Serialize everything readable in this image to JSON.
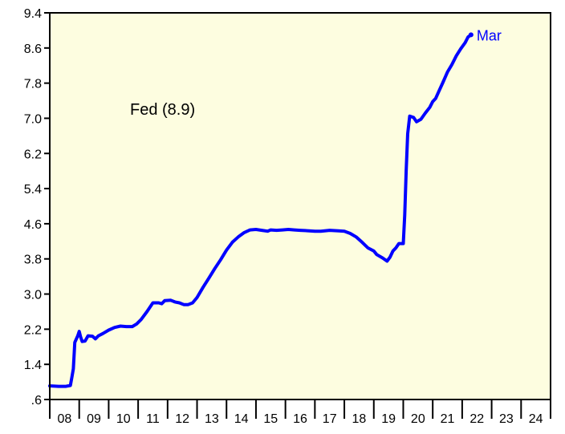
{
  "chart_data": {
    "type": "line",
    "title": "",
    "xlabel": "",
    "ylabel": "",
    "annotation": "Fed (8.9)",
    "end_label": "Mar",
    "colors": {
      "line": "#0000ff",
      "plot_bg": "#fdfde0",
      "border": "#000000",
      "label": "#0000ff"
    },
    "x_ticks": [
      "08",
      "09",
      "10",
      "11",
      "12",
      "13",
      "14",
      "15",
      "16",
      "17",
      "18",
      "19",
      "20",
      "21",
      "22",
      "23",
      "24"
    ],
    "y_ticks": [
      "9.4",
      "8.6",
      "7.8",
      "7.0",
      "6.2",
      "5.4",
      "4.6",
      "3.8",
      "3.0",
      "2.2",
      "1.4",
      ".6"
    ],
    "xlim": [
      2008.0,
      2025.0
    ],
    "ylim": [
      0.6,
      9.4
    ],
    "grid": false,
    "series": [
      {
        "points": [
          [
            2008.0,
            0.91
          ],
          [
            2008.3,
            0.9
          ],
          [
            2008.55,
            0.9
          ],
          [
            2008.7,
            0.92
          ],
          [
            2008.75,
            1.1
          ],
          [
            2008.8,
            1.3
          ],
          [
            2008.85,
            1.9
          ],
          [
            2008.95,
            2.05
          ],
          [
            2009.0,
            2.15
          ],
          [
            2009.05,
            2.02
          ],
          [
            2009.1,
            1.92
          ],
          [
            2009.2,
            1.93
          ],
          [
            2009.3,
            2.05
          ],
          [
            2009.45,
            2.04
          ],
          [
            2009.55,
            1.98
          ],
          [
            2009.65,
            2.05
          ],
          [
            2009.8,
            2.1
          ],
          [
            2010.0,
            2.18
          ],
          [
            2010.2,
            2.24
          ],
          [
            2010.4,
            2.27
          ],
          [
            2010.6,
            2.26
          ],
          [
            2010.8,
            2.26
          ],
          [
            2010.95,
            2.32
          ],
          [
            2011.1,
            2.42
          ],
          [
            2011.3,
            2.6
          ],
          [
            2011.5,
            2.8
          ],
          [
            2011.7,
            2.8
          ],
          [
            2011.8,
            2.78
          ],
          [
            2011.9,
            2.85
          ],
          [
            2012.1,
            2.86
          ],
          [
            2012.25,
            2.82
          ],
          [
            2012.4,
            2.8
          ],
          [
            2012.55,
            2.76
          ],
          [
            2012.7,
            2.76
          ],
          [
            2012.85,
            2.8
          ],
          [
            2013.0,
            2.92
          ],
          [
            2013.2,
            3.15
          ],
          [
            2013.4,
            3.36
          ],
          [
            2013.6,
            3.58
          ],
          [
            2013.8,
            3.78
          ],
          [
            2014.0,
            4.0
          ],
          [
            2014.2,
            4.18
          ],
          [
            2014.4,
            4.3
          ],
          [
            2014.6,
            4.4
          ],
          [
            2014.8,
            4.46
          ],
          [
            2015.0,
            4.47
          ],
          [
            2015.2,
            4.45
          ],
          [
            2015.4,
            4.43
          ],
          [
            2015.5,
            4.46
          ],
          [
            2015.7,
            4.45
          ],
          [
            2015.9,
            4.46
          ],
          [
            2016.1,
            4.47
          ],
          [
            2016.3,
            4.46
          ],
          [
            2016.5,
            4.45
          ],
          [
            2016.8,
            4.44
          ],
          [
            2017.0,
            4.43
          ],
          [
            2017.2,
            4.43
          ],
          [
            2017.5,
            4.45
          ],
          [
            2017.8,
            4.44
          ],
          [
            2018.0,
            4.43
          ],
          [
            2018.2,
            4.38
          ],
          [
            2018.4,
            4.3
          ],
          [
            2018.6,
            4.18
          ],
          [
            2018.8,
            4.05
          ],
          [
            2019.0,
            3.98
          ],
          [
            2019.1,
            3.9
          ],
          [
            2019.3,
            3.82
          ],
          [
            2019.45,
            3.75
          ],
          [
            2019.55,
            3.84
          ],
          [
            2019.65,
            3.98
          ],
          [
            2019.75,
            4.05
          ],
          [
            2019.85,
            4.15
          ],
          [
            2020.0,
            4.15
          ],
          [
            2020.05,
            4.8
          ],
          [
            2020.1,
            5.8
          ],
          [
            2020.15,
            6.65
          ],
          [
            2020.22,
            7.05
          ],
          [
            2020.35,
            7.02
          ],
          [
            2020.45,
            6.92
          ],
          [
            2020.6,
            6.98
          ],
          [
            2020.75,
            7.12
          ],
          [
            2020.9,
            7.25
          ],
          [
            2021.0,
            7.38
          ],
          [
            2021.1,
            7.45
          ],
          [
            2021.2,
            7.6
          ],
          [
            2021.35,
            7.82
          ],
          [
            2021.5,
            8.05
          ],
          [
            2021.65,
            8.22
          ],
          [
            2021.8,
            8.42
          ],
          [
            2021.95,
            8.58
          ],
          [
            2022.1,
            8.72
          ],
          [
            2022.2,
            8.85
          ],
          [
            2022.3,
            8.9
          ]
        ]
      }
    ]
  }
}
